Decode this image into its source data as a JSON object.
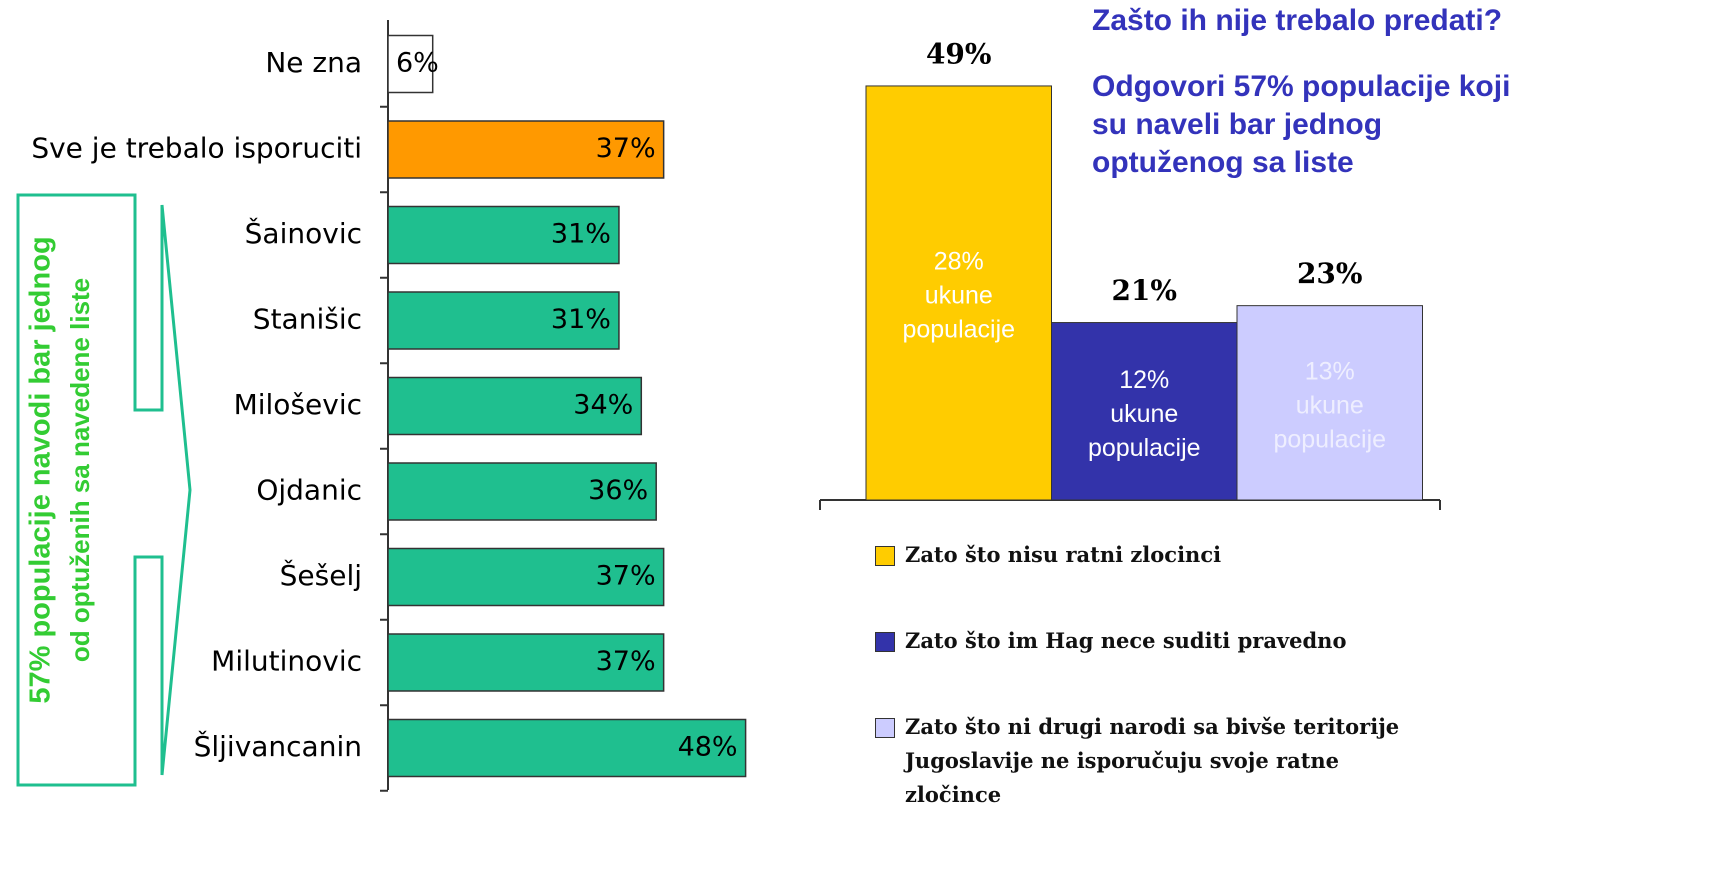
{
  "chart_data": [
    {
      "type": "hbar",
      "categories": [
        "Ne zna",
        "Sve je trebalo isporuciti",
        "Šainovic",
        "Stanišic",
        "Miloševic",
        "Ojdanic",
        "Šešelj",
        "Milutinovic",
        "Šljivancanin"
      ],
      "values": [
        6,
        37,
        31,
        31,
        34,
        36,
        37,
        37,
        48
      ],
      "value_labels": [
        "6%",
        "37%",
        "31%",
        "31%",
        "34%",
        "36%",
        "37%",
        "37%",
        "48%"
      ],
      "colors": [
        "#ffffff",
        "#ff9900",
        "#1fbf8f",
        "#1fbf8f",
        "#1fbf8f",
        "#1fbf8f",
        "#1fbf8f",
        "#1fbf8f",
        "#1fbf8f"
      ],
      "annotation": [
        "57% populacije navodi bar jednog",
        "od optuženih sa navedene liste"
      ]
    },
    {
      "type": "bar",
      "title": "Zašto ih nije trebalo predati?",
      "subtitle": [
        "Odgovori 57% populacije koji",
        "su naveli bar jednog",
        "optuženog sa liste"
      ],
      "categories": [
        "Zato što nisu ratni zlocinci",
        "Zato što im Hag nece suditi pravedno",
        "Zato što ni drugi narodi sa bivše teritorije Jugoslavije ne isporučuju svoje ratne zločince"
      ],
      "values": [
        49,
        21,
        23
      ],
      "value_labels": [
        "49%",
        "21%",
        "23%"
      ],
      "colors": [
        "#ffcc00",
        "#3333aa",
        "#ccccff"
      ],
      "inner_labels": [
        [
          "28%",
          "ukune",
          "populacije"
        ],
        [
          "12%",
          "ukune",
          "populacije"
        ],
        [
          "13%",
          "ukune",
          "populacije"
        ]
      ],
      "inner_label_colors": [
        "#ffffff",
        "#ffffff",
        "#eeeeff"
      ]
    }
  ]
}
